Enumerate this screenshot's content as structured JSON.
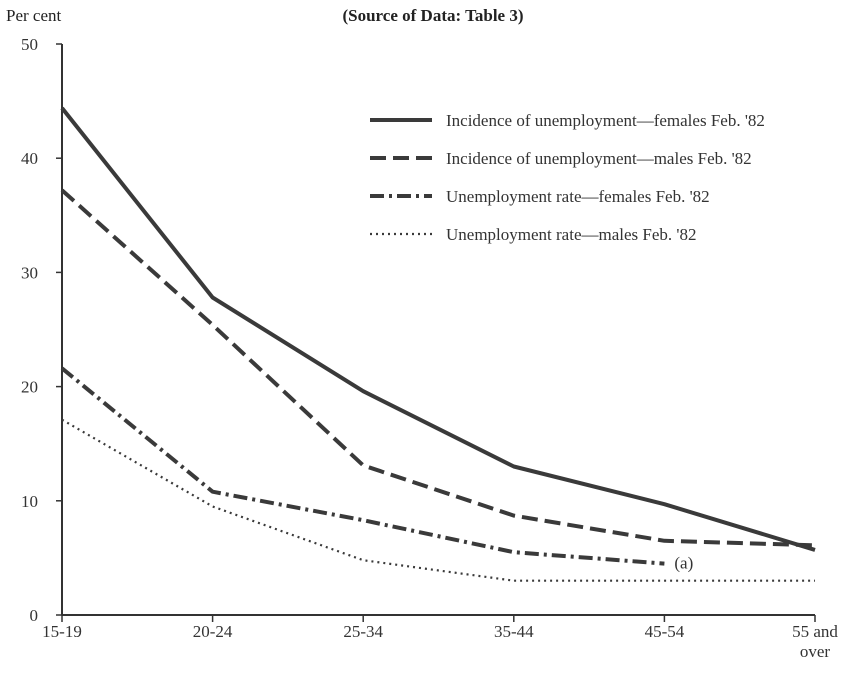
{
  "subtitle": "(Source of Data: Table 3)",
  "chart_data": {
    "type": "line",
    "title": "",
    "subtitle": "(Source of Data: Table 3)",
    "xlabel": "",
    "ylabel": "Per cent",
    "ylim": [
      0,
      50
    ],
    "yticks": [
      0,
      10,
      20,
      30,
      40,
      50
    ],
    "categories": [
      "15-19",
      "20-24",
      "25-34",
      "35-44",
      "45-54",
      "55 and over"
    ],
    "category_display": [
      [
        "15-19"
      ],
      [
        "20-24"
      ],
      [
        "25-34"
      ],
      [
        "35-44"
      ],
      [
        "45-54"
      ],
      [
        "55 and",
        "over"
      ]
    ],
    "grid": false,
    "legend_position": "top-right",
    "series": [
      {
        "name": "Incidence of unemployment—females Feb. '82",
        "style": "solid",
        "values": [
          44.4,
          27.8,
          19.6,
          13.0,
          9.7,
          5.7
        ]
      },
      {
        "name": "Incidence of unemployment—males Feb. '82",
        "style": "dashed",
        "values": [
          37.2,
          25.4,
          13.1,
          8.7,
          6.5,
          6.1
        ]
      },
      {
        "name": "Unemployment rate—females Feb. '82",
        "style": "dash-dot",
        "values": [
          21.6,
          10.8,
          8.3,
          5.5,
          4.5,
          null
        ]
      },
      {
        "name": "Unemployment rate—males Feb. '82",
        "style": "dotted",
        "values": [
          17.1,
          9.5,
          4.8,
          3.0,
          3.0,
          3.0
        ]
      }
    ],
    "annotations": [
      {
        "text": "(a)",
        "category": "45-54",
        "y": 4.5
      }
    ],
    "colors": {
      "line": "#3a3a3a",
      "axis": "#333333"
    }
  }
}
